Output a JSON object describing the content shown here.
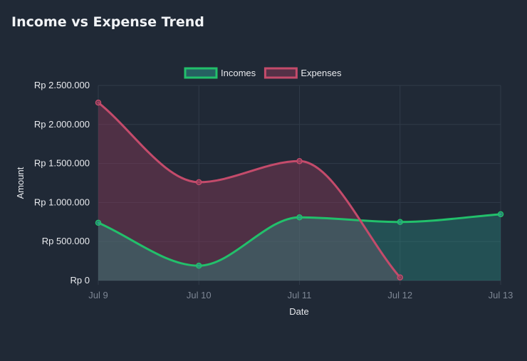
{
  "card": {
    "title": "Income vs Expense Trend"
  },
  "chart_data": {
    "type": "line",
    "categories": [
      "Jul 9",
      "Jul 10",
      "Jul 11",
      "Jul 12",
      "Jul 13"
    ],
    "series": [
      {
        "name": "Incomes",
        "values": [
          740000,
          190000,
          810000,
          750000,
          850000
        ],
        "line_color": "#22c06b",
        "fill_color": "#2b9a8d"
      },
      {
        "name": "Expenses",
        "values": [
          2280000,
          1260000,
          1530000,
          40000,
          null
        ],
        "line_color": "#c44b6b",
        "fill_color": "#8a3a58"
      }
    ],
    "xlabel": "Date",
    "ylabel": "Amount",
    "ylim": [
      0,
      2500000
    ],
    "yticks": [
      0,
      500000,
      1000000,
      1500000,
      2000000,
      2500000
    ],
    "ytick_labels": [
      "Rp 0",
      "Rp 500.000",
      "Rp 1.000.000",
      "Rp 1.500.000",
      "Rp 2.000.000",
      "Rp 2.500.000"
    ],
    "legend_position": "top-center",
    "grid": true,
    "curve": "smooth",
    "filled": true
  }
}
